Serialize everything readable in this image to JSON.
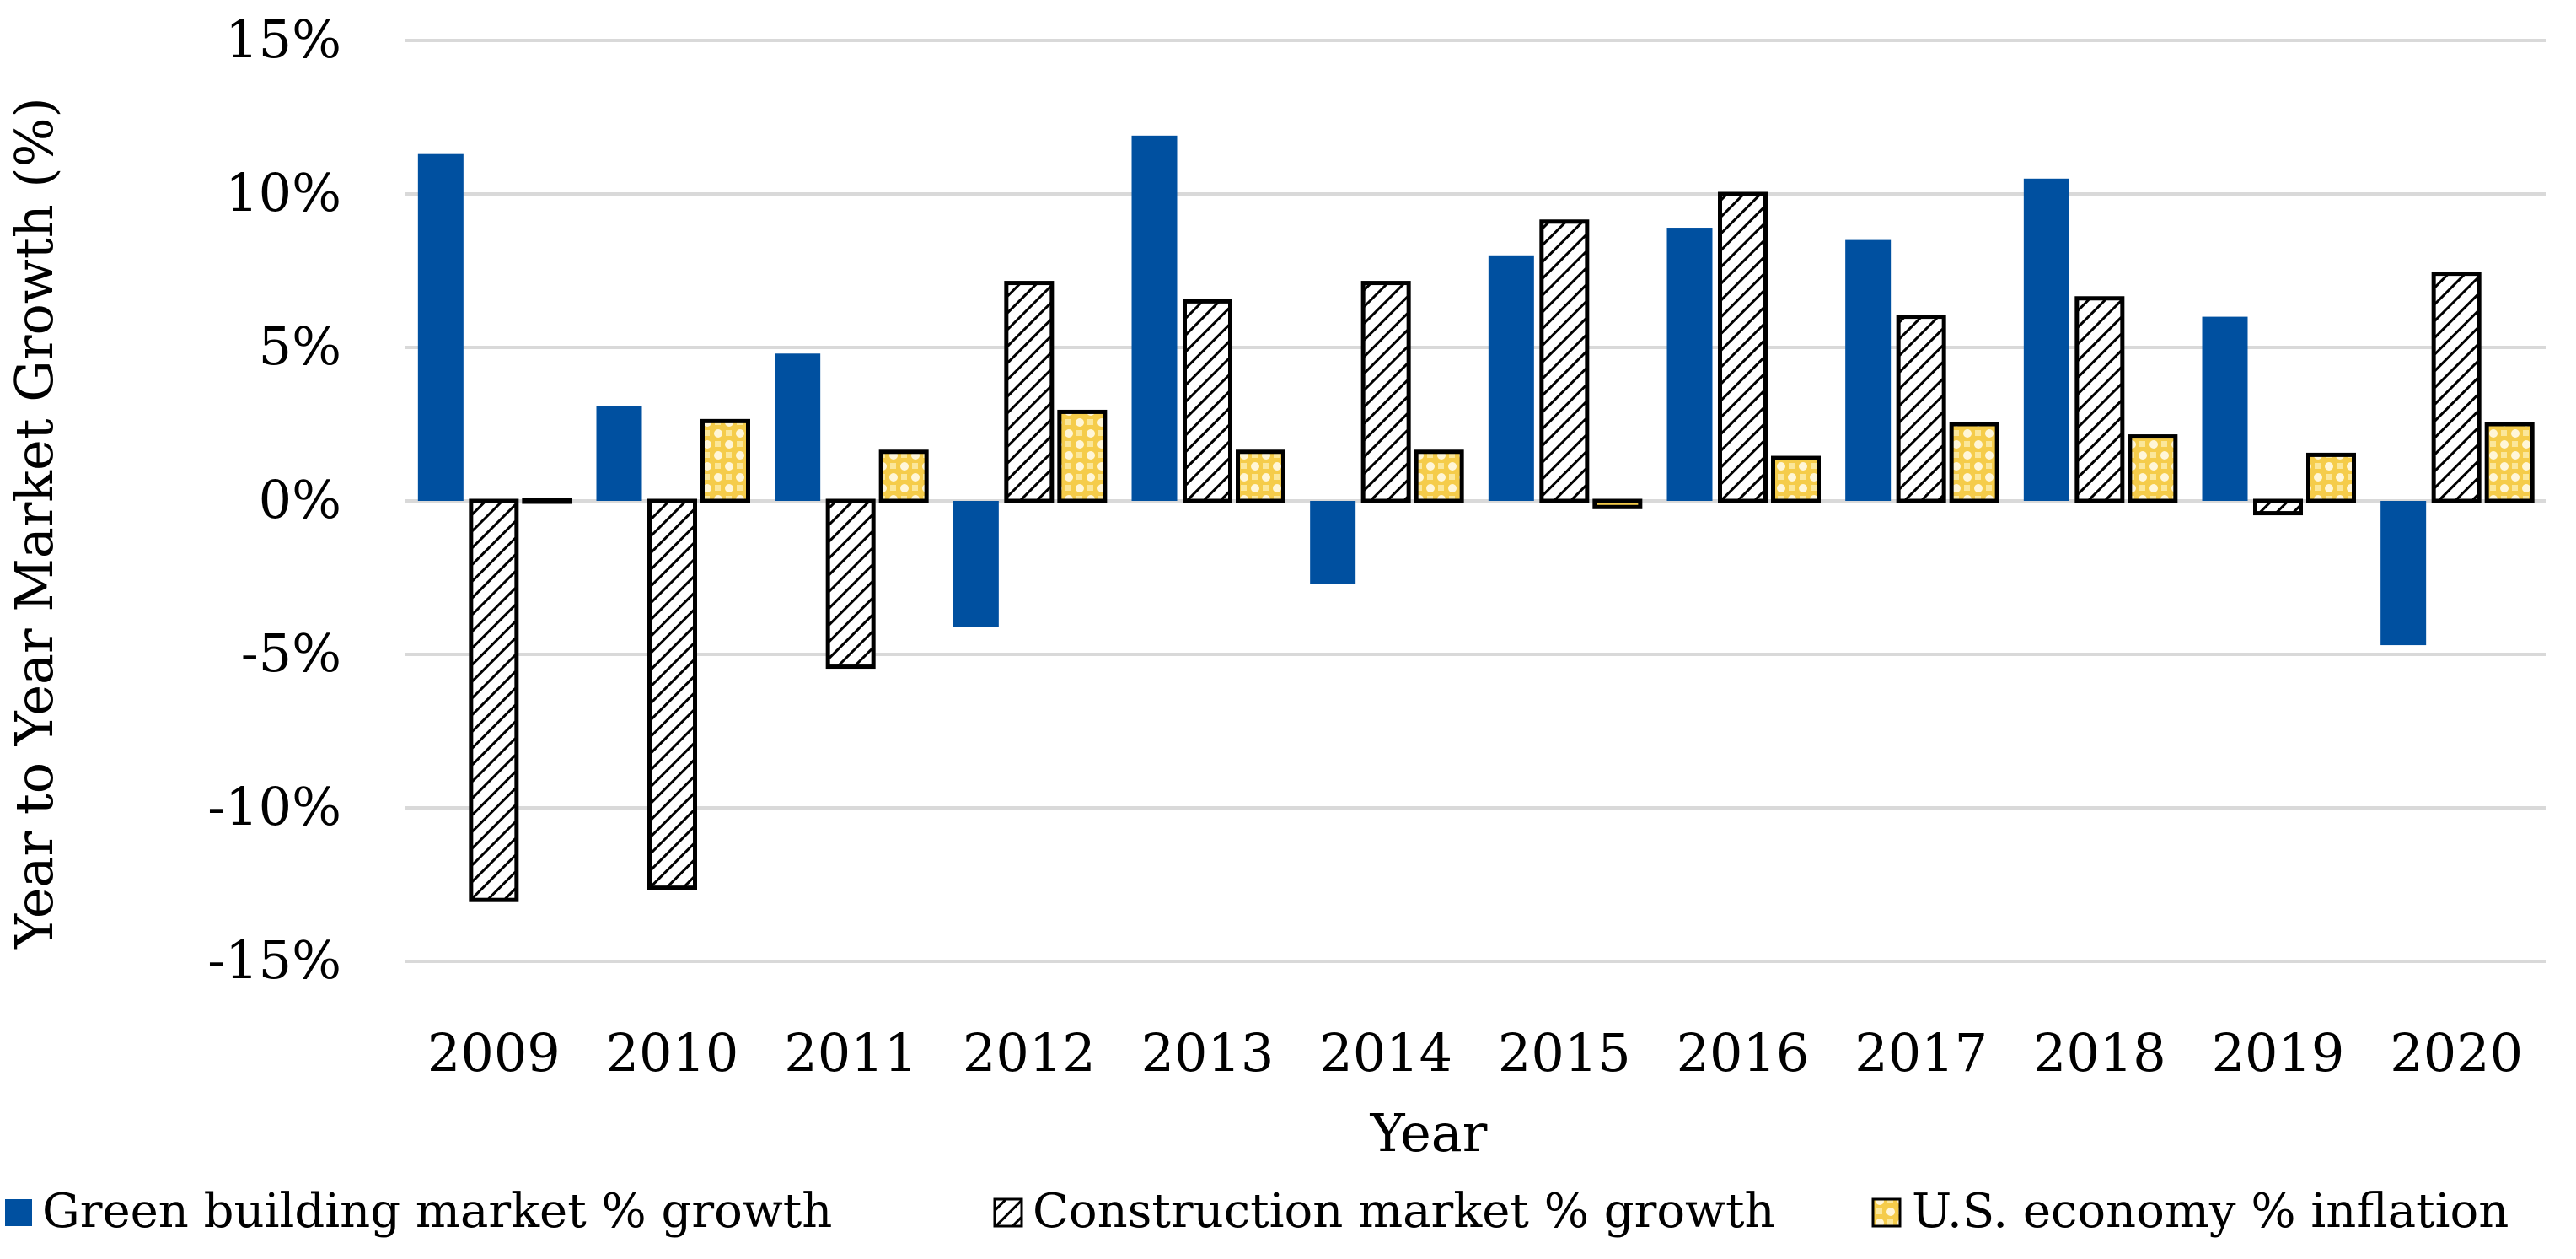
{
  "chart_data": {
    "type": "bar",
    "title": "",
    "xlabel": "Year",
    "ylabel": "Year to Year Market Growth (%)",
    "ylim": [
      -15,
      15
    ],
    "ytick_step": 5,
    "ytick_labels": [
      "-15%",
      "-10%",
      "-5%",
      "0%",
      "5%",
      "10%",
      "15%"
    ],
    "grid": true,
    "legend_position": "bottom",
    "categories": [
      "2009",
      "2010",
      "2011",
      "2012",
      "2013",
      "2014",
      "2015",
      "2016",
      "2017",
      "2018",
      "2019",
      "2020"
    ],
    "series": [
      {
        "name": "Green building market % growth",
        "values": [
          11.3,
          3.1,
          4.8,
          -4.1,
          11.9,
          -2.7,
          8.0,
          8.9,
          8.5,
          10.5,
          6.0,
          -4.7
        ],
        "color": "#0050a0",
        "pattern": "solid"
      },
      {
        "name": "Construction market % growth",
        "values": [
          -13.0,
          -12.6,
          -5.4,
          7.1,
          6.5,
          7.1,
          9.1,
          10.0,
          6.0,
          6.6,
          -0.4,
          7.4
        ],
        "color": "#000000",
        "pattern": "diagonal-hatch"
      },
      {
        "name": "U.S. economy % inflation",
        "values": [
          0.0,
          2.6,
          1.6,
          2.9,
          1.6,
          1.6,
          -0.2,
          1.4,
          2.5,
          2.1,
          1.5,
          2.5
        ],
        "color": "#f5cc4a",
        "pattern": "yellow-dots"
      }
    ]
  }
}
